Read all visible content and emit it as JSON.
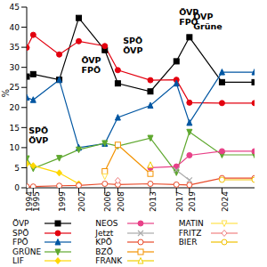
{
  "chart_data": {
    "type": "line",
    "y_label": "%",
    "x": [
      1994,
      1995,
      1999,
      2002,
      2006,
      2008,
      2013,
      2017,
      2019,
      2024,
      2029
    ],
    "xlim": [
      1994,
      2029
    ],
    "xticks": [
      1994,
      1995,
      1999,
      2002,
      2006,
      2008,
      2013,
      2017,
      2019,
      2024
    ],
    "ylim": [
      0,
      45
    ],
    "yticks": [
      0,
      5,
      10,
      15,
      20,
      25,
      30,
      35,
      40,
      45
    ],
    "grid": false,
    "annotations": [
      "SPÖ ÖVP",
      "ÖVP FPÖ",
      "SPÖ ÖVP",
      "ÖVP FPÖ",
      "ÖVP Grüne"
    ],
    "series": [
      {
        "name": "ÖVP",
        "color": "#000000",
        "marker": "square",
        "values": [
          27.7,
          28.3,
          26.9,
          42.3,
          34.3,
          26.0,
          24.0,
          31.5,
          37.5,
          26.3,
          26.3
        ]
      },
      {
        "name": "SPÖ",
        "color": "#e3000f",
        "marker": "circle",
        "values": [
          34.9,
          38.1,
          33.2,
          36.5,
          35.3,
          29.3,
          26.8,
          26.9,
          21.2,
          21.1,
          21.1
        ]
      },
      {
        "name": "FPÖ",
        "color": "#0056a2",
        "marker": "triangle",
        "values": [
          22.5,
          21.9,
          26.9,
          10.0,
          11.0,
          17.5,
          20.5,
          26.0,
          16.2,
          28.8,
          28.8
        ]
      },
      {
        "name": "GRÜNE",
        "color": "#5fa82f",
        "marker": "triangle-down",
        "values": [
          7.3,
          4.8,
          7.4,
          9.5,
          11.1,
          10.4,
          12.4,
          3.8,
          13.9,
          8.2,
          8.2
        ]
      },
      {
        "name": "LIF",
        "color": "#ffd700",
        "marker": "diamond",
        "values": [
          6.0,
          5.5,
          3.7,
          1.0,
          null,
          null,
          null,
          null,
          null,
          null,
          null
        ]
      },
      {
        "name": "NEOS",
        "color": "#e84188",
        "marker": "circle",
        "values": [
          null,
          null,
          null,
          null,
          null,
          null,
          5.0,
          5.3,
          8.1,
          9.1,
          9.1
        ]
      },
      {
        "name": "Jetzt",
        "color": "#aaaaaa",
        "marker": "x",
        "values": [
          null,
          null,
          null,
          null,
          null,
          null,
          null,
          4.4,
          1.9,
          null,
          null
        ]
      },
      {
        "name": "KPÖ",
        "color": "#e84a2a",
        "marker": "circle-open",
        "values": [
          0.3,
          0.3,
          0.5,
          0.6,
          1.0,
          0.8,
          1.0,
          0.8,
          0.7,
          2.4,
          2.4
        ]
      },
      {
        "name": "BZÖ",
        "color": "#f39200",
        "marker": "square-open",
        "values": [
          null,
          null,
          null,
          null,
          4.1,
          10.7,
          3.5,
          null,
          null,
          null,
          null
        ]
      },
      {
        "name": "FRANK",
        "color": "#f0d000",
        "marker": "triangle-open",
        "values": [
          null,
          null,
          null,
          null,
          null,
          null,
          5.7,
          null,
          null,
          null,
          null
        ]
      },
      {
        "name": "MATIN",
        "color": "#ffe24a",
        "marker": "triangle-down-open",
        "values": [
          null,
          null,
          null,
          null,
          2.8,
          null,
          null,
          null,
          null,
          null,
          null
        ]
      },
      {
        "name": "FRITZ",
        "color": "#f08080",
        "marker": "diamond-open",
        "values": [
          null,
          null,
          null,
          null,
          null,
          1.8,
          null,
          null,
          null,
          null,
          null
        ]
      },
      {
        "name": "BIER",
        "color": "#f0c000",
        "marker": "circle-open",
        "values": [
          null,
          null,
          null,
          null,
          null,
          null,
          null,
          null,
          null,
          2.0,
          2.0
        ]
      }
    ]
  }
}
